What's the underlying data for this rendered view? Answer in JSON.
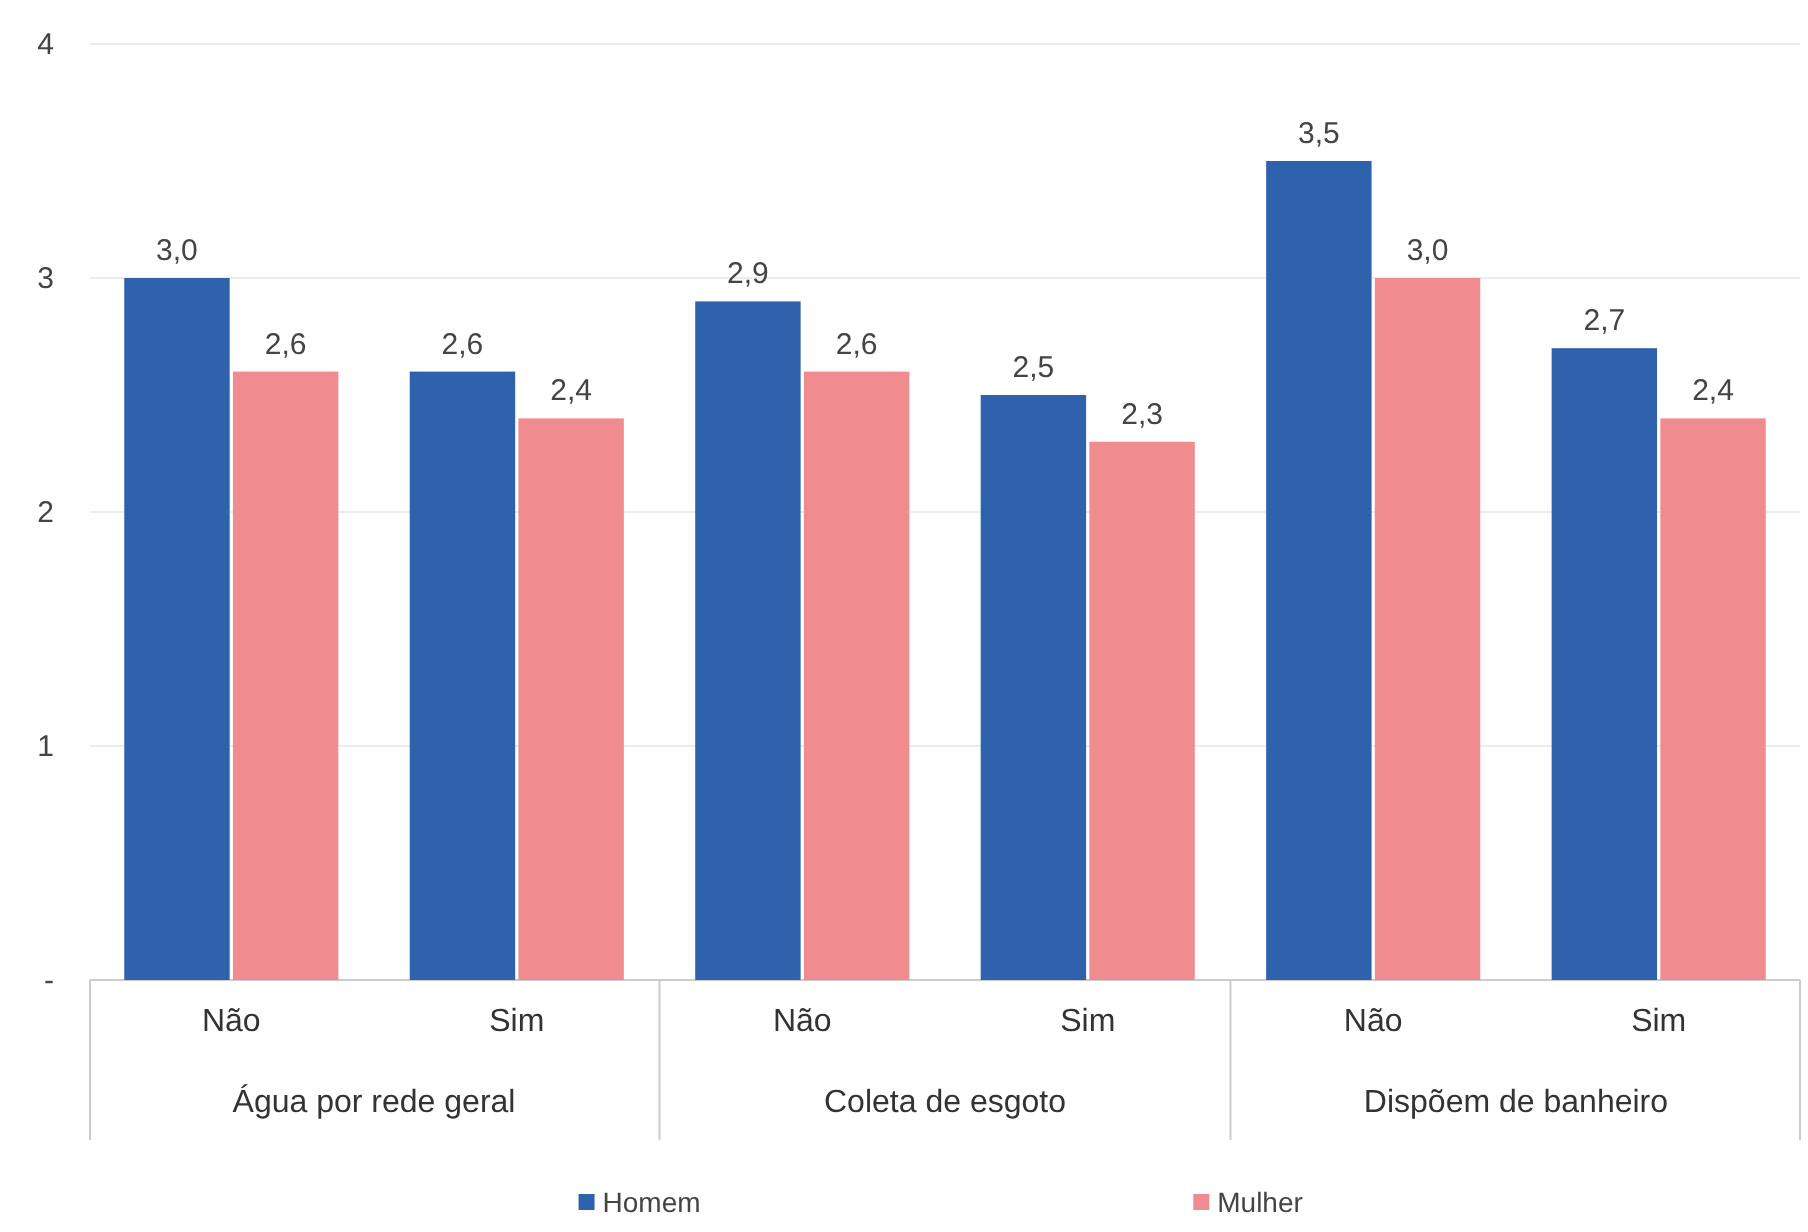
{
  "chart_data": {
    "type": "bar",
    "categories": [
      "Não",
      "Sim",
      "Não",
      "Sim",
      "Não",
      "Sim"
    ],
    "series": [
      {
        "name": "Homem",
        "color": "#2f62ad",
        "values": [
          3.0,
          2.6,
          2.9,
          2.5,
          3.5,
          2.7
        ],
        "value_labels": [
          "3,0",
          "2,6",
          "2,9",
          "2,5",
          "3,5",
          "2,7"
        ]
      },
      {
        "name": "Mulher",
        "color": "#f08c8f",
        "values": [
          2.6,
          2.4,
          2.6,
          2.3,
          3.0,
          2.4
        ],
        "value_labels": [
          "2,6",
          "2,4",
          "2,6",
          "2,3",
          "3,0",
          "2,4"
        ]
      }
    ],
    "annotations": [
      "Água por rede geral",
      "Coleta de esgoto",
      "Dispõem de banheiro"
    ],
    "ylim": [
      0,
      4
    ],
    "yticks": [
      {
        "value": 0,
        "label": "-"
      },
      1,
      2,
      3,
      4
    ],
    "grid": "y",
    "legend": "bottom"
  }
}
